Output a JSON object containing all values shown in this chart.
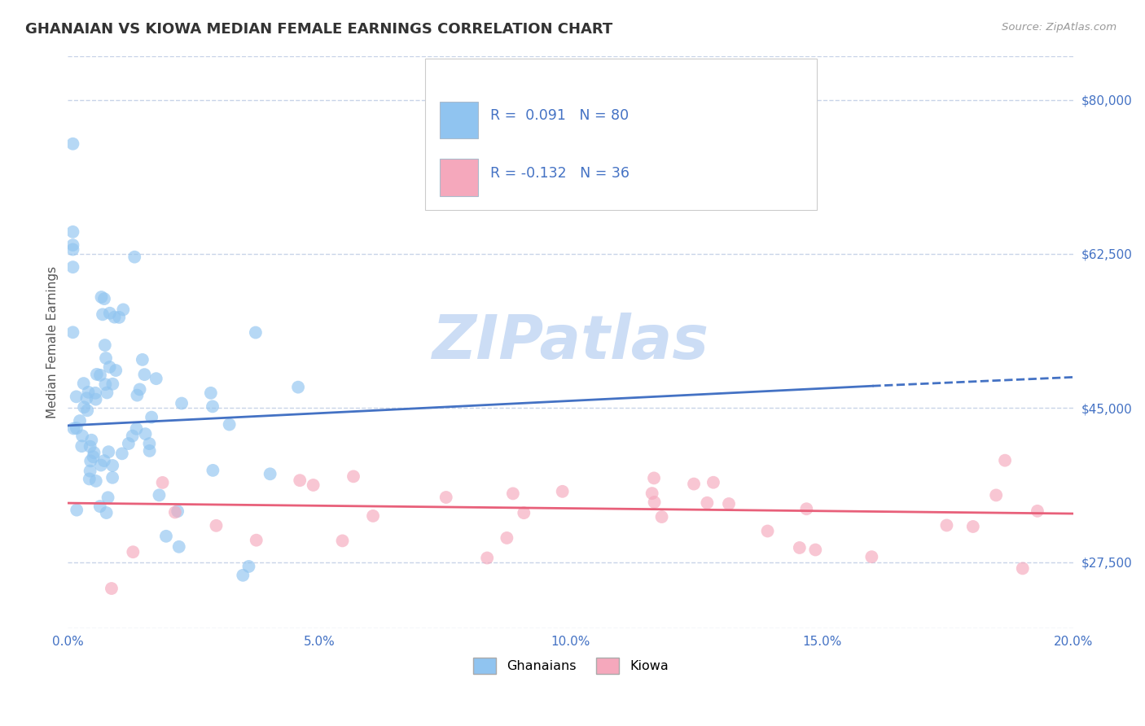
{
  "title": "GHANAIAN VS KIOWA MEDIAN FEMALE EARNINGS CORRELATION CHART",
  "source": "Source: ZipAtlas.com",
  "ylabel": "Median Female Earnings",
  "xlim": [
    0.0,
    0.2
  ],
  "ylim": [
    20000,
    85000
  ],
  "yticks": [
    27500,
    45000,
    62500,
    80000
  ],
  "ytick_labels": [
    "$27,500",
    "$45,000",
    "$62,500",
    "$80,000"
  ],
  "xtick_labels": [
    "0.0%",
    "5.0%",
    "10.0%",
    "15.0%",
    "20.0%"
  ],
  "xticks": [
    0.0,
    0.05,
    0.1,
    0.15,
    0.2
  ],
  "ghanaian_color": "#90c4f0",
  "kiowa_color": "#f5a8bc",
  "ghanaian_line_color": "#4472C4",
  "kiowa_line_color": "#e8607a",
  "watermark": "ZIPatlas",
  "background_color": "#ffffff",
  "grid_color": "#c8d4e8",
  "ghanaian_R": 0.091,
  "ghanaian_N": 80,
  "kiowa_R": -0.132,
  "kiowa_N": 36,
  "blue_line_y0": 43000,
  "blue_line_y1": 47500,
  "blue_line_solid_end": 0.16,
  "blue_line_dash_end": 0.2,
  "blue_line_ydash": 48500,
  "pink_line_y0": 34200,
  "pink_line_y1": 33000
}
